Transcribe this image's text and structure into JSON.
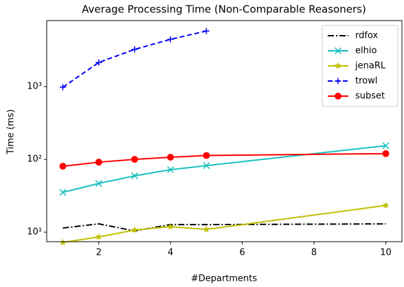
{
  "chart_data": {
    "type": "line",
    "title": "Average Processing Time (Non-Comparable Reasoners)",
    "xlabel": "#Departments",
    "ylabel": "Time (ms)",
    "x": [
      1,
      2,
      3,
      4,
      5,
      10
    ],
    "series": [
      {
        "name": "rdfox",
        "color": "#000000",
        "linestyle": "dashdot",
        "marker": "none",
        "values": [
          11.4,
          13.0,
          10.4,
          12.7,
          12.7,
          13.0
        ]
      },
      {
        "name": "elhio",
        "color": "#17bfbf",
        "linestyle": "solid",
        "marker": "x",
        "values": [
          35.2,
          46.7,
          59.4,
          72.1,
          82,
          154
        ]
      },
      {
        "name": "jenaRL",
        "color": "#bfbf00",
        "linestyle": "solid",
        "marker": "star",
        "values": [
          7.22,
          8.6,
          10.7,
          11.9,
          10.9,
          23.3
        ]
      },
      {
        "name": "trowl",
        "color": "#0000ff",
        "linestyle": "dashed",
        "marker": "plus",
        "values": [
          980,
          2140,
          3240,
          4450,
          5800,
          null
        ]
      },
      {
        "name": "subset",
        "color": "#ff0000",
        "linestyle": "solid",
        "marker": "circle",
        "values": [
          80.5,
          91.5,
          100,
          107,
          113,
          120
        ]
      }
    ],
    "xlim": [
      0.55,
      10.45
    ],
    "xticks": [
      2,
      4,
      6,
      8,
      10
    ],
    "ylim": [
      7.4,
      8050
    ],
    "yticks": [
      {
        "value": 10,
        "label": "10¹"
      },
      {
        "value": 100,
        "label": "10²"
      },
      {
        "value": 1000,
        "label": "10³"
      }
    ],
    "log_y": true,
    "legend": "upper right"
  }
}
